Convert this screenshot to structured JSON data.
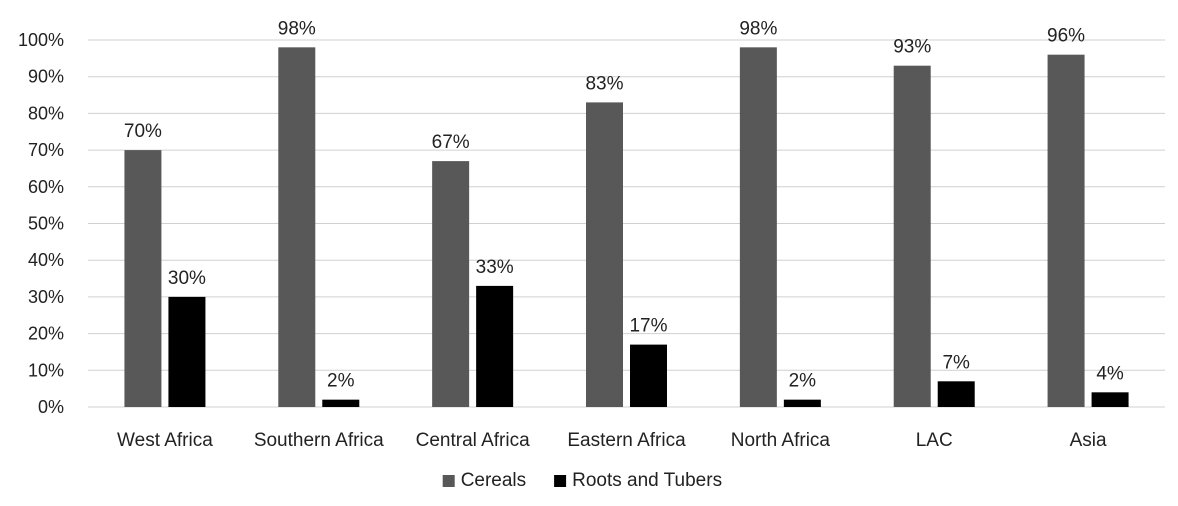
{
  "chart_data": {
    "type": "bar",
    "title": "",
    "xlabel": "",
    "ylabel": "",
    "ylim": [
      0,
      100
    ],
    "y_ticks": [
      "0%",
      "10%",
      "20%",
      "30%",
      "40%",
      "50%",
      "60%",
      "70%",
      "80%",
      "90%",
      "100%"
    ],
    "grid": true,
    "legend_position": "bottom",
    "categories": [
      "West Africa",
      "Southern Africa",
      "Central Africa",
      "Eastern Africa",
      "North Africa",
      "LAC",
      "Asia"
    ],
    "series": [
      {
        "name": "Cereals",
        "color": "#585858",
        "values": [
          70,
          98,
          67,
          83,
          98,
          93,
          96
        ],
        "labels": [
          "70%",
          "98%",
          "67%",
          "83%",
          "98%",
          "93%",
          "96%"
        ]
      },
      {
        "name": "Roots and Tubers",
        "color": "#000000",
        "values": [
          30,
          2,
          33,
          17,
          2,
          7,
          4
        ],
        "labels": [
          "30%",
          "2%",
          "33%",
          "17%",
          "2%",
          "7%",
          "4%"
        ]
      }
    ]
  }
}
